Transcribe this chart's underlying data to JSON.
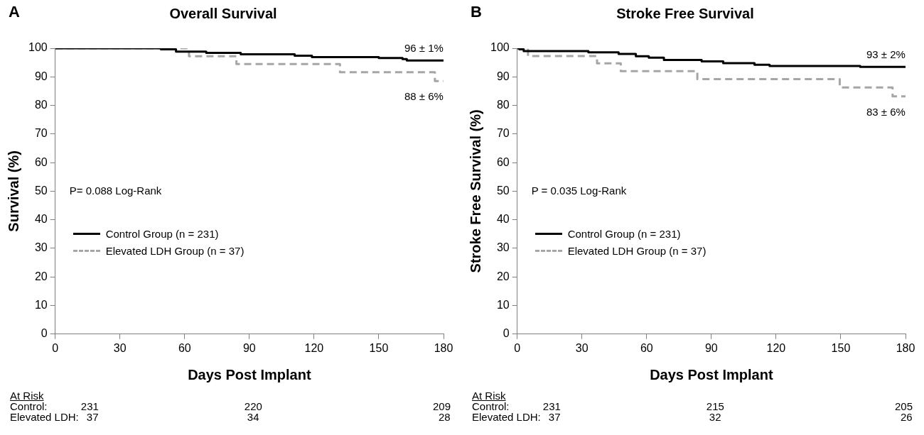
{
  "chart_data": [
    {
      "type": "step",
      "title": "Overall Survival",
      "xlabel": "Days Post Implant",
      "ylabel": "Survival (%)",
      "xlim": [
        0,
        180
      ],
      "xticks": [
        0,
        30,
        60,
        90,
        120,
        150,
        180
      ],
      "ylim": [
        0,
        100
      ],
      "yticks": [
        0,
        10,
        20,
        30,
        40,
        50,
        60,
        70,
        80,
        90,
        100
      ],
      "legend": "left",
      "marker": "none",
      "series": [
        {
          "name": "Control Group (n = 231)",
          "color": "#000000",
          "line_style": "solid",
          "x": [
            0,
            49,
            56,
            70,
            86,
            111,
            119,
            150,
            161,
            163,
            180
          ],
          "values": [
            100,
            99.6,
            98.8,
            98.4,
            97.9,
            97.4,
            96.9,
            96.6,
            96.2,
            95.7,
            95.7
          ]
        },
        {
          "name": "Elevated LDH Group (n = 37)",
          "color": "#a6a6a6",
          "line_style": "dashed",
          "x": [
            0,
            62,
            84,
            132,
            176,
            180
          ],
          "values": [
            100,
            97.2,
            94.5,
            91.6,
            88.5,
            88.5
          ]
        }
      ],
      "annotations": [
        "A",
        "P= 0.088 Log-Rank",
        "96 ± 1%",
        "88 ± 6%",
        "At Risk",
        "Control:",
        "231",
        "220",
        "209",
        "Elevated LDH:",
        "37",
        "34",
        "28"
      ]
    },
    {
      "type": "step",
      "title": "Stroke Free Survival",
      "xlabel": "Days Post Implant",
      "ylabel": "Stroke Free Survival (%)",
      "xlim": [
        0,
        180
      ],
      "xticks": [
        0,
        30,
        60,
        90,
        120,
        150,
        180
      ],
      "ylim": [
        0,
        100
      ],
      "yticks": [
        0,
        10,
        20,
        30,
        40,
        50,
        60,
        70,
        80,
        90,
        100
      ],
      "legend": "left",
      "marker": "none",
      "series": [
        {
          "name": "Control Group (n = 231)",
          "color": "#000000",
          "line_style": "solid",
          "x": [
            0,
            1,
            3,
            33,
            47,
            55,
            61,
            68,
            85.5,
            95.5,
            110,
            117,
            159,
            180
          ],
          "values": [
            100,
            99.6,
            99.0,
            98.6,
            98.0,
            97.2,
            96.7,
            95.9,
            95.4,
            94.8,
            94.2,
            93.8,
            93.5,
            93.5
          ]
        },
        {
          "name": "Elevated LDH Group (n = 37)",
          "color": "#a6a6a6",
          "line_style": "dashed",
          "x": [
            0,
            5,
            37,
            48,
            83.5,
            149.5,
            174,
            180
          ],
          "values": [
            100,
            97.3,
            94.7,
            92.0,
            89.2,
            86.3,
            83.2,
            83.2
          ]
        }
      ],
      "annotations": [
        "B",
        "P = 0.035 Log-Rank",
        "93 ± 2%",
        "83 ± 6%",
        "At Risk",
        "Control:",
        "231",
        "215",
        "205",
        "Elevated LDH:",
        "37",
        "32",
        "26"
      ]
    }
  ]
}
